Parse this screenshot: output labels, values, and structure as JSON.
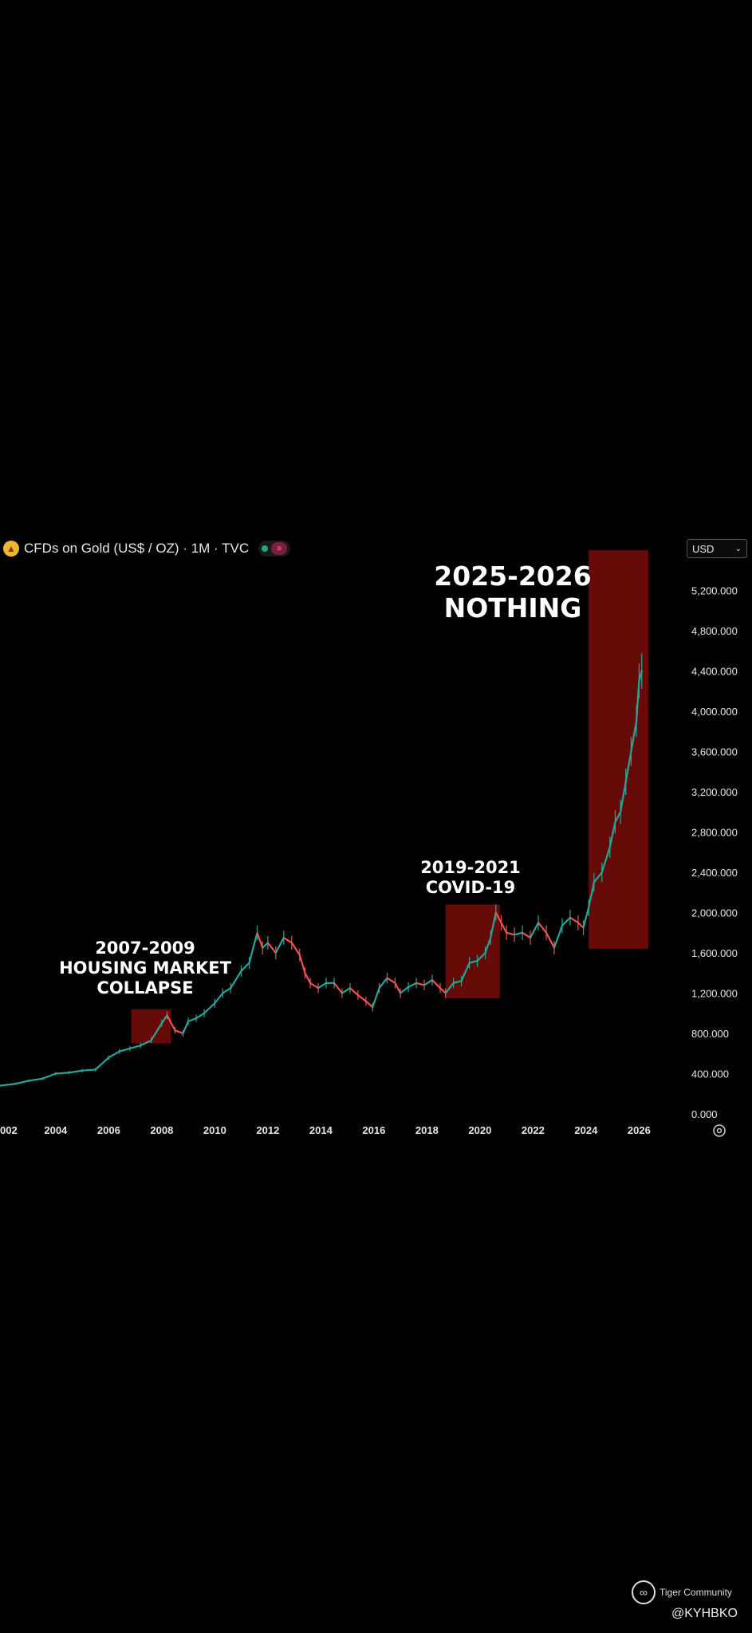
{
  "header": {
    "title": "CFDs on Gold (US$ / OZ) · 1M · TVC",
    "currency": "USD"
  },
  "annotations": [
    {
      "id": "a2008",
      "lines": [
        "2007-2009",
        "HOUSING MARKET",
        "COLLAPSE"
      ]
    },
    {
      "id": "a2020",
      "lines": [
        "2019-2021",
        "COVID-19"
      ]
    },
    {
      "id": "a2026",
      "lines": [
        "2025-2026",
        "NOTHING"
      ]
    }
  ],
  "footer": {
    "brand": "Tiger Community",
    "handle": "@KYHBKO"
  },
  "colors": {
    "up": "#26a69a",
    "down": "#ef5350",
    "highlight": "#6e0b07"
  },
  "chart_data": {
    "type": "line",
    "x_ticks": [
      "002",
      "2004",
      "2006",
      "2008",
      "2010",
      "2012",
      "2014",
      "2016",
      "2018",
      "2020",
      "2022",
      "2024",
      "2026"
    ],
    "y_ticks": [
      "0.000",
      "400.000",
      "800.000",
      "1,200.000",
      "1,600.000",
      "2,000.000",
      "2,400.000",
      "2,800.000",
      "3,200.000",
      "3,600.000",
      "4,000.000",
      "4,400.000",
      "4,800.000",
      "5,200.000"
    ],
    "xlim": [
      2001.9,
      2026.8
    ],
    "ylim": [
      0,
      5600
    ],
    "series": [
      {
        "x": [
          2001.9,
          2002.5,
          2003,
          2003.5,
          2004,
          2004.5,
          2005,
          2005.5,
          2006,
          2006.4,
          2006.8,
          2007.2,
          2007.6,
          2008,
          2008.2,
          2008.5,
          2008.8,
          2009,
          2009.3,
          2009.6,
          2010,
          2010.3,
          2010.6,
          2011,
          2011.3,
          2011.6,
          2011.8,
          2012,
          2012.3,
          2012.6,
          2012.9,
          2013.2,
          2013.4,
          2013.6,
          2013.9,
          2014.2,
          2014.5,
          2014.8,
          2015.1,
          2015.4,
          2015.7,
          2015.95,
          2016.2,
          2016.5,
          2016.8,
          2017,
          2017.3,
          2017.6,
          2017.9,
          2018.2,
          2018.5,
          2018.7,
          2019,
          2019.3,
          2019.6,
          2019.9,
          2020.2,
          2020.4,
          2020.6,
          2020.8,
          2021,
          2021.3,
          2021.6,
          2021.9,
          2022.2,
          2022.5,
          2022.8,
          2023.1,
          2023.4,
          2023.7,
          2023.9,
          2024.1,
          2024.3,
          2024.6,
          2024.9,
          2025.1,
          2025.3,
          2025.5,
          2025.7,
          2025.9,
          2026,
          2026.1
        ],
        "y": [
          280,
          300,
          330,
          350,
          400,
          410,
          430,
          440,
          560,
          620,
          650,
          680,
          730,
          900,
          980,
          830,
          800,
          920,
          950,
          1000,
          1100,
          1200,
          1250,
          1420,
          1500,
          1800,
          1650,
          1700,
          1600,
          1750,
          1700,
          1580,
          1400,
          1300,
          1250,
          1300,
          1300,
          1200,
          1250,
          1180,
          1120,
          1060,
          1250,
          1350,
          1300,
          1200,
          1260,
          1300,
          1280,
          1330,
          1250,
          1200,
          1300,
          1320,
          1500,
          1520,
          1600,
          1750,
          2000,
          1900,
          1800,
          1780,
          1800,
          1750,
          1900,
          1800,
          1650,
          1870,
          1950,
          1900,
          1850,
          2050,
          2300,
          2400,
          2650,
          2900,
          3000,
          3300,
          3600,
          3900,
          4300,
          4400
        ]
      }
    ]
  }
}
